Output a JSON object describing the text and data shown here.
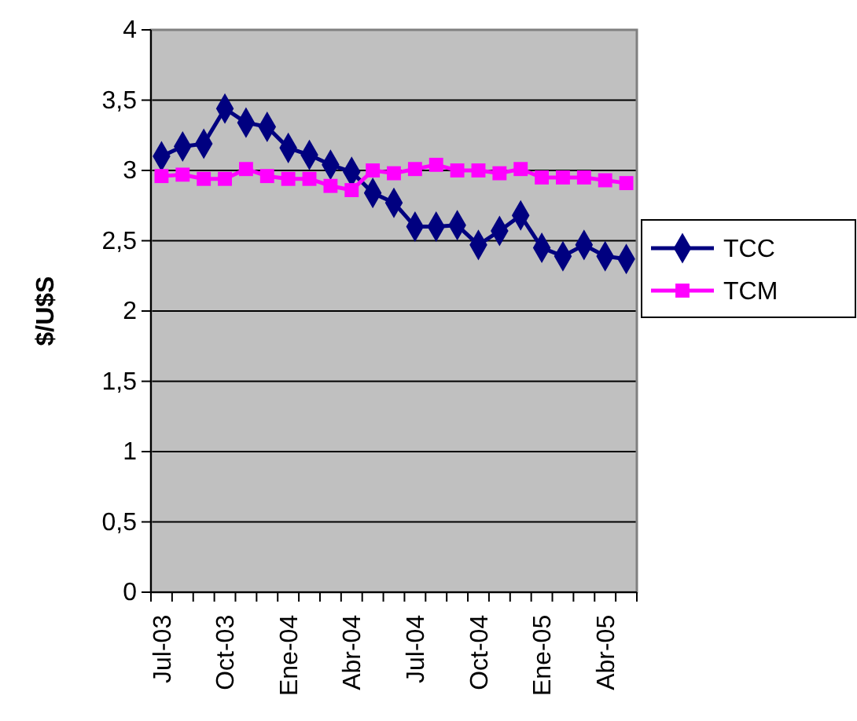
{
  "chart_data": {
    "type": "line",
    "ylabel": "$/U$S",
    "categories": [
      "Jul-03",
      null,
      null,
      "Oct-03",
      null,
      null,
      "Ene-04",
      null,
      null,
      "Abr-04",
      null,
      null,
      "Jul-04",
      null,
      null,
      "Oct-04",
      null,
      null,
      "Ene-05",
      null,
      null,
      "Abr-05",
      null
    ],
    "series": [
      {
        "name": "TCC",
        "color": "#000080",
        "marker": "diamond",
        "values": [
          3.1,
          3.17,
          3.19,
          3.44,
          3.34,
          3.31,
          3.16,
          3.11,
          3.04,
          2.99,
          2.84,
          2.77,
          2.6,
          2.6,
          2.61,
          2.47,
          2.57,
          2.68,
          2.45,
          2.39,
          2.47,
          2.39,
          2.37
        ]
      },
      {
        "name": "TCM",
        "color": "#ff00ff",
        "marker": "square",
        "values": [
          2.96,
          2.97,
          2.94,
          2.94,
          3.01,
          2.96,
          2.94,
          2.94,
          2.89,
          2.86,
          3.0,
          2.98,
          3.01,
          3.04,
          3.0,
          3.0,
          2.98,
          3.01,
          2.95,
          2.95,
          2.95,
          2.93,
          2.91
        ]
      }
    ],
    "ylim": [
      0,
      4
    ],
    "yticks": [
      0,
      {
        "value": 0.5,
        "label": "0,5"
      },
      1,
      {
        "value": 1.5,
        "label": "1,5"
      },
      2,
      {
        "value": 2.5,
        "label": "2,5"
      },
      3,
      {
        "value": 3.5,
        "label": "3,5"
      },
      4
    ],
    "grid": "y",
    "legend": "right",
    "line_style": "solid"
  }
}
